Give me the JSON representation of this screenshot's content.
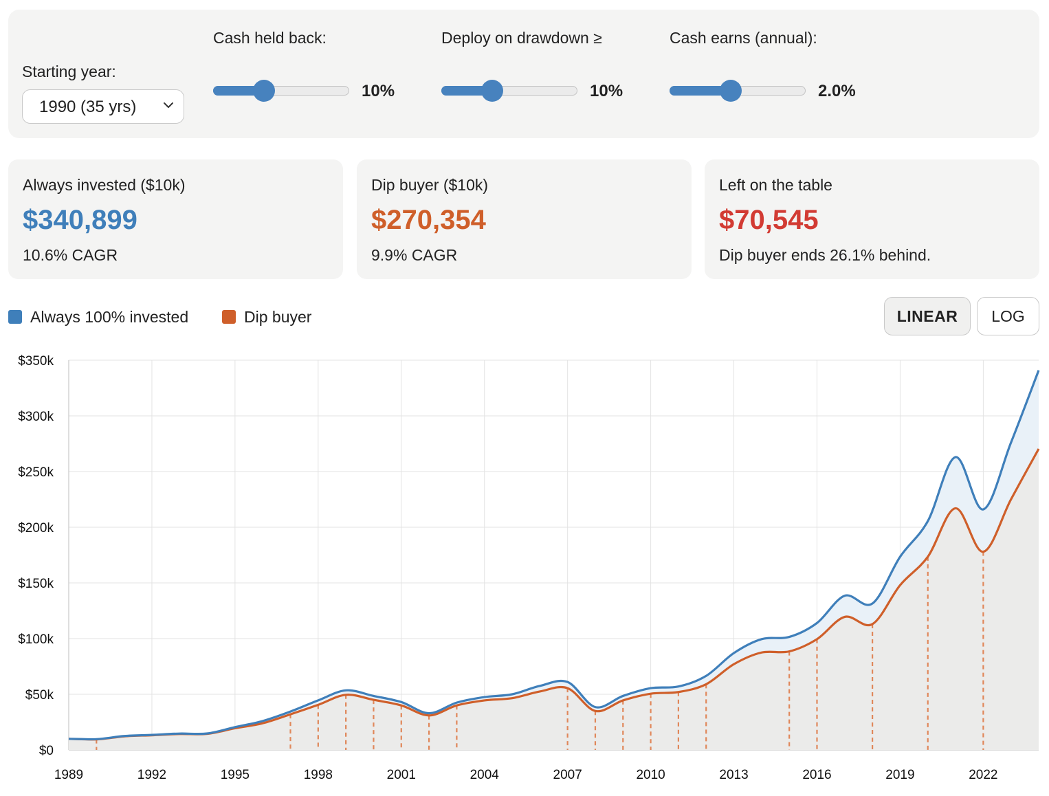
{
  "controls": {
    "starting_year": {
      "label": "Starting year:",
      "value": "1990 (35 yrs)"
    },
    "cash_held_back": {
      "label": "Cash held back:",
      "value": "10%",
      "fraction": 0.375
    },
    "deploy_on_drawdown": {
      "label": "Deploy on drawdown ≥",
      "value": "10%",
      "fraction": 0.375
    },
    "cash_earns": {
      "label": "Cash earns (annual):",
      "value": "2.0%",
      "fraction": 0.45
    },
    "accent_color": "#4782be"
  },
  "cards": [
    {
      "label": "Always invested ($10k)",
      "value": "$340,899",
      "sub": "10.6% CAGR",
      "color": "#3f7fba"
    },
    {
      "label": "Dip buyer ($10k)",
      "value": "$270,354",
      "sub": "9.9% CAGR",
      "color": "#cf5f2a"
    },
    {
      "label": "Left on the table",
      "value": "$70,545",
      "sub": "Dip buyer ends 26.1% behind.",
      "color": "#d23b33"
    }
  ],
  "legend": [
    {
      "label": "Always 100% invested",
      "color": "#3f7fba"
    },
    {
      "label": "Dip buyer",
      "color": "#cf5f2a"
    }
  ],
  "scale_toggle": {
    "linear_label": "LINEAR",
    "log_label": "LOG",
    "active": "linear"
  },
  "chart_data": {
    "type": "line",
    "x": [
      1989,
      1990,
      1991,
      1992,
      1993,
      1994,
      1995,
      1996,
      1997,
      1998,
      1999,
      2000,
      2001,
      2002,
      2003,
      2004,
      2005,
      2006,
      2007,
      2008,
      2009,
      2010,
      2011,
      2012,
      2013,
      2014,
      2015,
      2016,
      2017,
      2018,
      2019,
      2020,
      2021,
      2022,
      2023,
      2024
    ],
    "series": [
      {
        "name": "Always 100% invested",
        "color": "#3f7fba",
        "values": [
          10000,
          9700,
          12500,
          13500,
          14700,
          14800,
          20500,
          26000,
          34500,
          44500,
          53500,
          48500,
          43000,
          33000,
          42500,
          47500,
          50000,
          57500,
          61000,
          38500,
          48500,
          55500,
          57000,
          66500,
          87000,
          99500,
          101500,
          114000,
          138500,
          131500,
          173500,
          205500,
          263000,
          216000,
          276000,
          340899
        ]
      },
      {
        "name": "Dip buyer",
        "color": "#cf5f2a",
        "values": [
          10000,
          9500,
          12200,
          13200,
          14300,
          14500,
          19500,
          24000,
          32000,
          40500,
          49500,
          45000,
          40000,
          31000,
          40000,
          44500,
          46500,
          52500,
          55500,
          35000,
          44500,
          50500,
          52000,
          59000,
          77000,
          87500,
          88500,
          99500,
          119500,
          113000,
          148000,
          173500,
          217000,
          178000,
          225000,
          270354
        ]
      }
    ],
    "deploy_years": [
      1990,
      1997,
      1998,
      1999,
      2000,
      2001,
      2002,
      2003,
      2007,
      2008,
      2009,
      2010,
      2011,
      2012,
      2015,
      2016,
      2018,
      2020,
      2022
    ],
    "x_ticks": [
      "1989",
      "1992",
      "1995",
      "1998",
      "2001",
      "2004",
      "2007",
      "2010",
      "2013",
      "2016",
      "2019",
      "2022"
    ],
    "y_ticks": [
      "$0",
      "$50k",
      "$100k",
      "$150k",
      "$200k",
      "$250k",
      "$300k",
      "$350k"
    ],
    "xlim": [
      1989,
      2024
    ],
    "ylim": [
      0,
      350000
    ],
    "y_scale": "linear",
    "grid": true,
    "legend_placement": "top-left"
  }
}
